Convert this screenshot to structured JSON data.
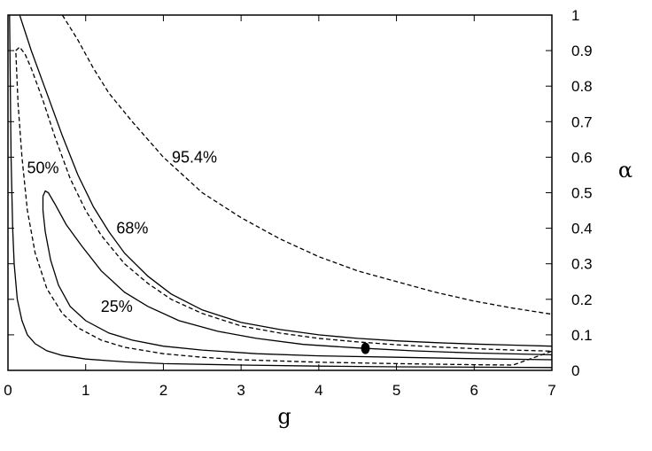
{
  "chart_data": {
    "type": "line",
    "title": "",
    "xlabel": "g",
    "ylabel": "α",
    "xlim": [
      0,
      7
    ],
    "ylim": [
      0,
      1
    ],
    "x_ticks": [
      "0",
      "1",
      "2",
      "3",
      "4",
      "5",
      "6",
      "7"
    ],
    "y_ticks": [
      "0",
      "0.1",
      "0.2",
      "0.3",
      "0.4",
      "0.5",
      "0.6",
      "0.7",
      "0.8",
      "0.9",
      "1"
    ],
    "y_axis_side": "right",
    "grid": false,
    "legend": "none",
    "annotations": [
      {
        "text": "95.4%",
        "x": 2.4,
        "y": 0.585
      },
      {
        "text": "68%",
        "x": 1.6,
        "y": 0.385
      },
      {
        "text": "50%",
        "x": 0.45,
        "y": 0.555
      },
      {
        "text": "25%",
        "x": 1.4,
        "y": 0.165
      }
    ],
    "best_fit_point": {
      "x": 4.6,
      "y": 0.062
    },
    "series": [
      {
        "style": "dashed",
        "points": [
          [
            0.7,
            1.0
          ],
          [
            0.9,
            0.93
          ],
          [
            1.1,
            0.85
          ],
          [
            1.3,
            0.78
          ],
          [
            1.6,
            0.7
          ],
          [
            2.0,
            0.6
          ],
          [
            2.5,
            0.5
          ],
          [
            3.0,
            0.43
          ],
          [
            3.5,
            0.37
          ],
          [
            4.0,
            0.32
          ],
          [
            4.5,
            0.28
          ],
          [
            5.0,
            0.25
          ],
          [
            5.5,
            0.22
          ],
          [
            6.0,
            0.195
          ],
          [
            6.5,
            0.175
          ],
          [
            7.0,
            0.158
          ]
        ]
      },
      {
        "style": "solid",
        "points": [
          [
            0.15,
            1.0
          ],
          [
            0.3,
            0.9
          ],
          [
            0.5,
            0.78
          ],
          [
            0.7,
            0.66
          ],
          [
            0.9,
            0.55
          ],
          [
            1.1,
            0.46
          ],
          [
            1.3,
            0.39
          ],
          [
            1.5,
            0.33
          ],
          [
            1.8,
            0.265
          ],
          [
            2.1,
            0.215
          ],
          [
            2.5,
            0.17
          ],
          [
            3.0,
            0.135
          ],
          [
            3.5,
            0.115
          ],
          [
            4.0,
            0.1
          ],
          [
            4.5,
            0.09
          ],
          [
            5.0,
            0.083
          ],
          [
            5.5,
            0.078
          ],
          [
            6.0,
            0.074
          ],
          [
            6.5,
            0.071
          ],
          [
            7.0,
            0.068
          ]
        ]
      },
      {
        "style": "dashed",
        "points": [
          [
            0.1,
            0.9
          ],
          [
            0.15,
            0.91
          ],
          [
            0.22,
            0.89
          ],
          [
            0.3,
            0.85
          ],
          [
            0.45,
            0.76
          ],
          [
            0.6,
            0.66
          ],
          [
            0.8,
            0.54
          ],
          [
            1.0,
            0.45
          ],
          [
            1.2,
            0.38
          ],
          [
            1.5,
            0.3
          ],
          [
            1.8,
            0.245
          ],
          [
            2.1,
            0.2
          ],
          [
            2.5,
            0.16
          ],
          [
            3.0,
            0.125
          ],
          [
            3.5,
            0.105
          ],
          [
            4.0,
            0.09
          ],
          [
            4.5,
            0.08
          ],
          [
            5.0,
            0.072
          ],
          [
            5.5,
            0.066
          ],
          [
            6.0,
            0.061
          ],
          [
            6.5,
            0.057
          ],
          [
            7.0,
            0.054
          ],
          [
            6.5,
            0.015
          ],
          [
            6.0,
            0.016
          ],
          [
            5.0,
            0.019
          ],
          [
            4.0,
            0.023
          ],
          [
            3.0,
            0.03
          ],
          [
            2.5,
            0.037
          ],
          [
            2.0,
            0.047
          ],
          [
            1.5,
            0.065
          ],
          [
            1.2,
            0.085
          ],
          [
            0.9,
            0.12
          ],
          [
            0.7,
            0.16
          ],
          [
            0.5,
            0.23
          ],
          [
            0.35,
            0.33
          ],
          [
            0.25,
            0.45
          ],
          [
            0.18,
            0.6
          ],
          [
            0.13,
            0.75
          ],
          [
            0.1,
            0.9
          ]
        ]
      },
      {
        "style": "solid",
        "points": [
          [
            0.45,
            0.49
          ],
          [
            0.48,
            0.505
          ],
          [
            0.52,
            0.5
          ],
          [
            0.6,
            0.47
          ],
          [
            0.75,
            0.41
          ],
          [
            0.95,
            0.35
          ],
          [
            1.2,
            0.28
          ],
          [
            1.5,
            0.22
          ],
          [
            1.8,
            0.18
          ],
          [
            2.2,
            0.14
          ],
          [
            2.7,
            0.11
          ],
          [
            3.2,
            0.09
          ],
          [
            3.8,
            0.073
          ],
          [
            4.5,
            0.063
          ],
          [
            5.2,
            0.055
          ],
          [
            6.0,
            0.049
          ],
          [
            7.0,
            0.044
          ],
          [
            7.0,
            0.03
          ],
          [
            6.0,
            0.033
          ],
          [
            5.0,
            0.037
          ],
          [
            4.0,
            0.041
          ],
          [
            3.2,
            0.047
          ],
          [
            2.5,
            0.057
          ],
          [
            2.0,
            0.068
          ],
          [
            1.6,
            0.085
          ],
          [
            1.3,
            0.105
          ],
          [
            1.0,
            0.14
          ],
          [
            0.8,
            0.18
          ],
          [
            0.65,
            0.24
          ],
          [
            0.55,
            0.31
          ],
          [
            0.48,
            0.39
          ],
          [
            0.45,
            0.45
          ],
          [
            0.45,
            0.49
          ]
        ]
      },
      {
        "style": "solid",
        "points": [
          [
            0.02,
            1.0
          ],
          [
            0.04,
            0.6
          ],
          [
            0.06,
            0.4
          ],
          [
            0.08,
            0.3
          ],
          [
            0.12,
            0.2
          ],
          [
            0.18,
            0.14
          ],
          [
            0.25,
            0.1
          ],
          [
            0.35,
            0.075
          ],
          [
            0.5,
            0.055
          ],
          [
            0.7,
            0.042
          ],
          [
            1.0,
            0.032
          ],
          [
            1.5,
            0.024
          ],
          [
            2.0,
            0.019
          ],
          [
            3.0,
            0.015
          ],
          [
            4.0,
            0.012
          ],
          [
            5.0,
            0.01
          ],
          [
            6.0,
            0.009
          ],
          [
            7.0,
            0.008
          ]
        ]
      }
    ]
  }
}
